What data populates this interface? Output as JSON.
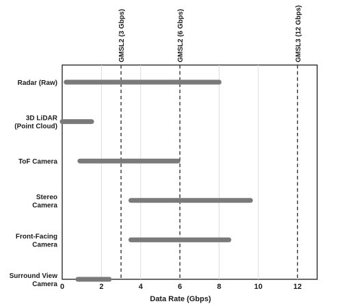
{
  "chart_data": {
    "type": "bar",
    "subtype": "range",
    "title": "",
    "xlabel": "Data Rate (Gbps)",
    "ylabel": "",
    "xlim": [
      0,
      13
    ],
    "xticks": [
      "0",
      "2",
      "4",
      "6",
      "8",
      "10",
      "12"
    ],
    "xtick_values": [
      0,
      2,
      4,
      6,
      8,
      10,
      12
    ],
    "grid": true,
    "bar_color": "#7a7a7a",
    "categories": [
      {
        "label_lines": [
          "Radar (Raw)"
        ],
        "start": 0.2,
        "end": 8.0
      },
      {
        "label_lines": [
          "3D LiDAR",
          "(Point Cloud)"
        ],
        "start": 0.0,
        "end": 1.5
      },
      {
        "label_lines": [
          "ToF Camera"
        ],
        "start": 0.9,
        "end": 5.9
      },
      {
        "label_lines": [
          "Stereo",
          "Camera"
        ],
        "start": 3.5,
        "end": 9.6
      },
      {
        "label_lines": [
          "Front-Facing",
          "Camera"
        ],
        "start": 3.5,
        "end": 8.5
      },
      {
        "label_lines": [
          "Surround View",
          "Camera"
        ],
        "start": 0.8,
        "end": 2.4
      }
    ],
    "reference_lines": [
      {
        "label": "GMSL2 (3 Gbps)",
        "value": 3
      },
      {
        "label": "GMSL2 (6 Gbps)",
        "value": 6
      },
      {
        "label": "GMSL3 (12 Gbps)",
        "value": 12
      }
    ]
  }
}
